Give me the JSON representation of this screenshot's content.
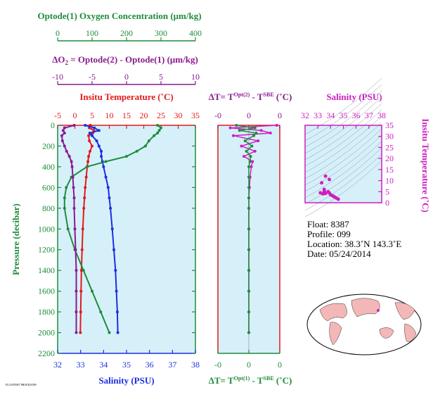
{
  "colors": {
    "green": "#1e8c3a",
    "purple": "#8a1a8f",
    "red": "#e01b1b",
    "blue": "#1a2fe0",
    "magenta": "#cc1fbf",
    "panel_bg": "#d6f0fa"
  },
  "top_axes": {
    "oxygen": {
      "title": "Optode(1) Oxygen Concentration (μm/kg)",
      "ticks": [
        "0",
        "100",
        "200",
        "300",
        "400"
      ]
    },
    "delta_o2": {
      "title_prefix": "ΔO",
      "title_sub": "2",
      "title_rest": " = Optode(2) - Optode(1)   (μm/kg)",
      "ticks": [
        "-10",
        "-5",
        "0",
        "5",
        "10"
      ]
    }
  },
  "info": {
    "float": "Float:  8387",
    "profile": "Profile:  099",
    "location": "Location:  38.3˚N  143.3˚E",
    "date": "Date:  05/24/2014"
  },
  "footer_small_text": "FLOAT8387 PROFILE099",
  "chart_data": [
    {
      "type": "line",
      "panel": "profile",
      "ylabel": "Pressure (decibar)",
      "ylim": [
        2200,
        0
      ],
      "yticks": [
        "0",
        "200",
        "400",
        "600",
        "800",
        "1000",
        "1200",
        "1400",
        "1600",
        "1800",
        "2000",
        "2200"
      ],
      "temperature_axis": {
        "label": "Insitu Temperature (˚C)",
        "range": [
          -5,
          35
        ],
        "ticks": [
          "-5",
          "0",
          "5",
          "10",
          "15",
          "20",
          "25",
          "30",
          "35"
        ]
      },
      "salinity_axis": {
        "label": "Salinity (PSU)",
        "range": [
          32,
          38
        ],
        "ticks": [
          "32",
          "33",
          "34",
          "35",
          "36",
          "37",
          "38"
        ]
      },
      "pressure": [
        0,
        25,
        50,
        75,
        100,
        150,
        200,
        250,
        300,
        350,
        400,
        500,
        600,
        700,
        800,
        1000,
        1200,
        1400,
        1600,
        1800,
        2000
      ],
      "series": [
        {
          "name": "Insitu Temperature",
          "color": "red",
          "axis": "temperature",
          "values": [
            4.5,
            4.2,
            5.5,
            5.2,
            4.0,
            4.2,
            5.0,
            4.4,
            4.0,
            3.8,
            3.6,
            3.3,
            3.0,
            2.8,
            2.6,
            2.3,
            2.1,
            1.9,
            1.8,
            1.7,
            1.6
          ]
        },
        {
          "name": "Salinity",
          "color": "blue",
          "axis": "salinity",
          "values": [
            33.2,
            33.6,
            33.8,
            33.4,
            33.5,
            33.7,
            33.8,
            33.9,
            33.9,
            33.95,
            34.0,
            34.1,
            34.2,
            34.25,
            34.3,
            34.38,
            34.45,
            34.52,
            34.56,
            34.6,
            34.62
          ]
        },
        {
          "name": "Oxygen",
          "color": "green",
          "axis": "oxygen",
          "values": [
            290,
            300,
            295,
            290,
            280,
            265,
            255,
            230,
            200,
            140,
            85,
            40,
            25,
            20,
            20,
            30,
            50,
            75,
            100,
            125,
            150
          ]
        },
        {
          "name": "Delta O2",
          "color": "purple",
          "axis": "delta_o2",
          "values": [
            -7.6,
            -9.0,
            -9.2,
            -9.0,
            -9.4,
            -9.3,
            -9.0,
            -8.7,
            -8.3,
            -8.0,
            -7.9,
            -7.8,
            -7.7,
            -7.6,
            -7.6,
            -7.5,
            -7.4,
            -7.3,
            -7.3,
            -7.3,
            -7.3
          ]
        }
      ]
    },
    {
      "type": "line",
      "panel": "delta_t",
      "top_label": {
        "prefix": "ΔT= T",
        "sup1": "Opt(2)",
        "mid": " - T",
        "sup2": "SBE",
        "suffix": " (˚C)"
      },
      "bottom_label": {
        "prefix": "ΔT= T",
        "sup1": "Opt(1)",
        "mid": " - T",
        "sup2": "SBE",
        "suffix": " (˚C)"
      },
      "ticks_top": [
        "-0",
        "0",
        "0"
      ],
      "ticks_bottom": [
        "-0",
        "0",
        "0"
      ],
      "xlim": [
        -0.5,
        0.5
      ],
      "pressure": [
        0,
        25,
        50,
        75,
        100,
        150,
        200,
        250,
        300,
        350,
        400,
        500,
        600,
        700,
        800,
        1000,
        1200,
        1400,
        1600,
        1800,
        2000
      ],
      "series": [
        {
          "name": "T Opt(2) - T SBE",
          "color": "magenta",
          "values": [
            0.45,
            -0.3,
            0.2,
            0.35,
            -0.25,
            0.15,
            -0.12,
            0.1,
            -0.08,
            0.06,
            0.04,
            0.02,
            0.01,
            0.0,
            0.0,
            0.0,
            0.0,
            0.0,
            0.0,
            0.0,
            0.0
          ]
        },
        {
          "name": "T Opt(1) - T SBE",
          "color": "green",
          "values": [
            -0.2,
            0.1,
            -0.15,
            0.12,
            0.08,
            -0.06,
            0.05,
            -0.04,
            0.03,
            0.02,
            0.0,
            0.0,
            0.0,
            0.0,
            0.0,
            0.0,
            0.0,
            0.0,
            0.0,
            0.0,
            0.0
          ]
        }
      ]
    },
    {
      "type": "scatter",
      "panel": "ts_diagram",
      "xlabel": "Salinity (PSU)",
      "ylabel": "Insitu Temperature (˚C)",
      "xlim": [
        32,
        38
      ],
      "ylim": [
        0,
        35
      ],
      "xticks": [
        "32",
        "33",
        "34",
        "35",
        "36",
        "37",
        "38"
      ],
      "yticks": [
        "0",
        "5",
        "10",
        "15",
        "20",
        "25",
        "30",
        "35"
      ],
      "series": [
        {
          "name": "T-S",
          "color": "magenta",
          "points": [
            [
              33.2,
              4.5
            ],
            [
              33.4,
              4.0
            ],
            [
              33.5,
              5.2
            ],
            [
              33.6,
              4.2
            ],
            [
              33.8,
              5.0
            ],
            [
              33.9,
              4.4
            ],
            [
              34.0,
              3.6
            ],
            [
              34.1,
              3.3
            ],
            [
              34.2,
              3.0
            ],
            [
              34.3,
              2.6
            ],
            [
              34.45,
              2.1
            ],
            [
              34.6,
              1.6
            ],
            [
              33.6,
              12.0
            ],
            [
              33.9,
              10.5
            ],
            [
              33.3,
              9.0
            ],
            [
              33.5,
              6.0
            ]
          ]
        }
      ]
    }
  ]
}
